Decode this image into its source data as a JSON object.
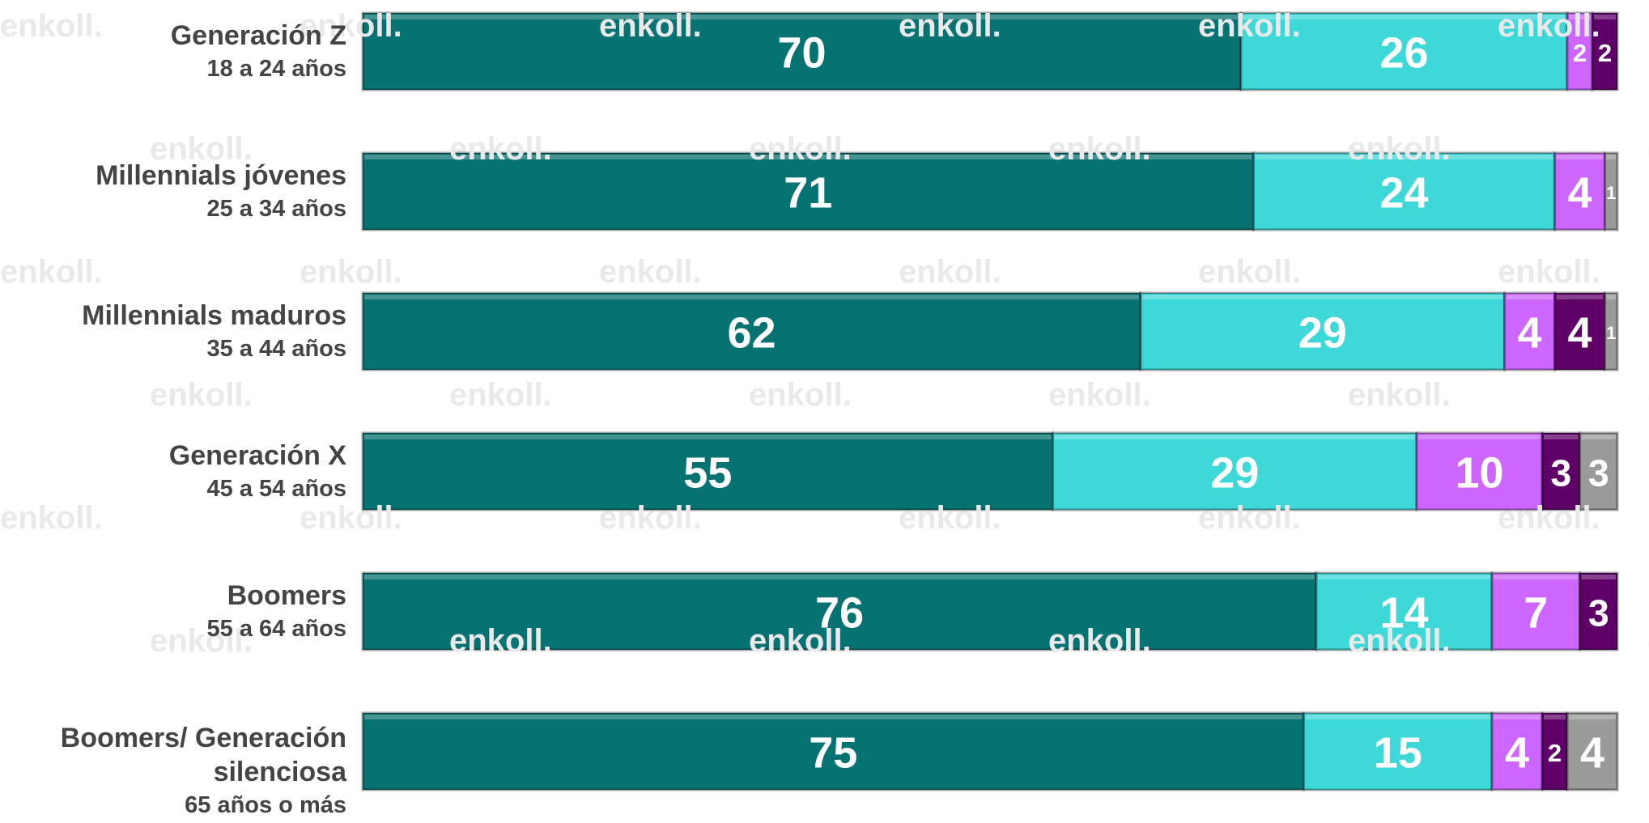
{
  "chart_data": {
    "type": "stacked-barh",
    "watermark": "enkoll.",
    "categories": [
      "Generación Z",
      "Millennials jóvenes",
      "Millennials maduros",
      "Generación X",
      "Boomers",
      "Boomers/ Generación silenciosa"
    ],
    "category_ages": [
      "18 a 24 años",
      "25 a 34 años",
      "35 a 44 años",
      "45 a 54 años",
      "55 a 64 años",
      "65 años o más"
    ],
    "xlim": [
      0,
      100
    ],
    "series": [
      {
        "color": "#077272",
        "values": [
          70,
          71,
          62,
          55,
          76,
          75
        ]
      },
      {
        "color": "#3ed8d8",
        "values": [
          26,
          24,
          29,
          29,
          14,
          15
        ]
      },
      {
        "color": "#cc66ff",
        "values": [
          2,
          4,
          4,
          10,
          7,
          4
        ]
      },
      {
        "color": "#5e0068",
        "values": [
          2,
          null,
          4,
          3,
          3,
          2
        ]
      },
      {
        "color": "#9a9a9a",
        "values": [
          null,
          1,
          1,
          3,
          null,
          4
        ]
      }
    ]
  }
}
